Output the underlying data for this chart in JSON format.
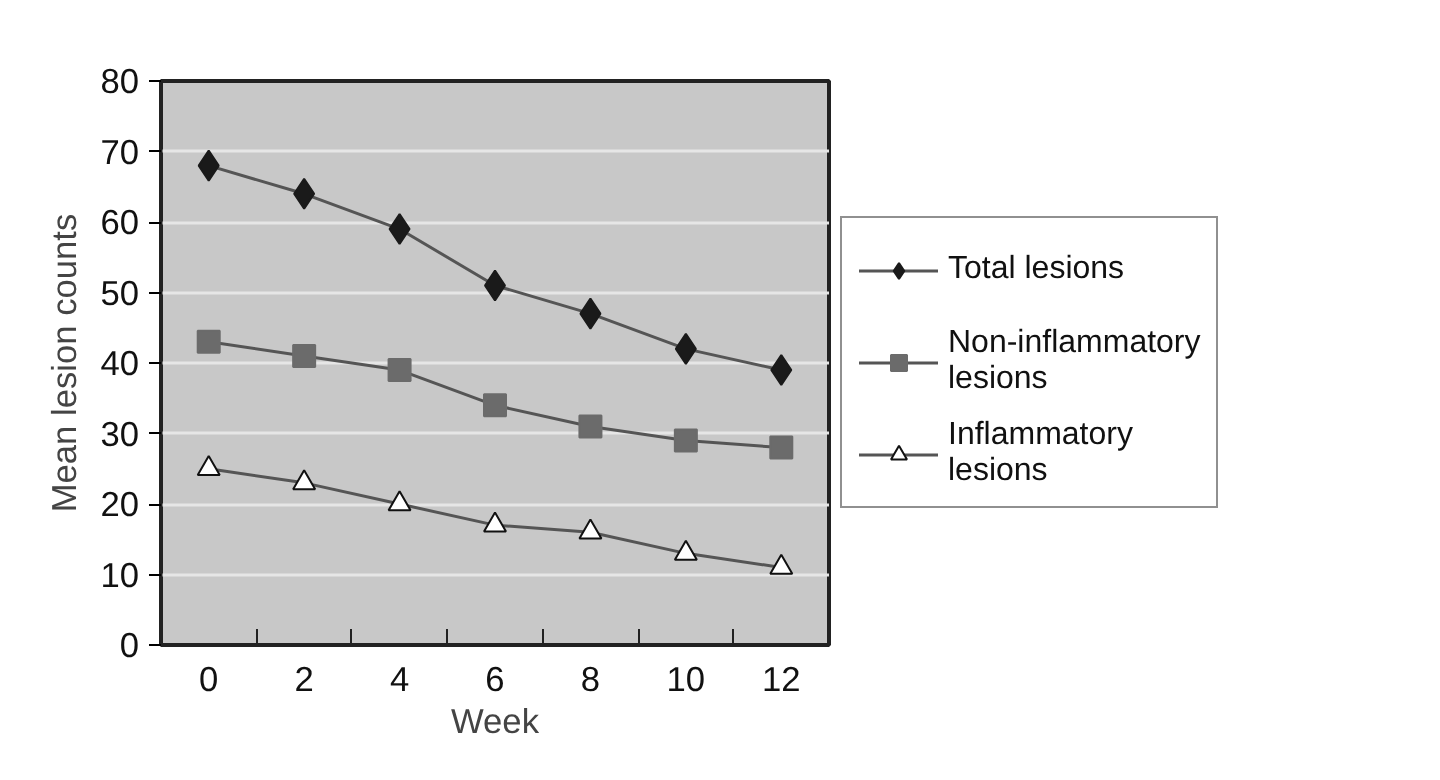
{
  "chart_data": {
    "type": "line",
    "xlabel": "Week",
    "ylabel": "Mean lesion counts",
    "categories": [
      "0",
      "2",
      "4",
      "6",
      "8",
      "10",
      "12"
    ],
    "ylim": [
      0,
      80
    ],
    "yticks": [
      0,
      10,
      20,
      30,
      40,
      50,
      60,
      70,
      80
    ],
    "grid": "y",
    "legend": "right",
    "series": [
      {
        "name": "Total lesions",
        "color": "#1a1a1a",
        "marker": "diamond",
        "values": [
          68,
          64,
          59,
          51,
          47,
          42,
          39
        ]
      },
      {
        "name": "Non-inflammatory lesions",
        "color": "#6b6b6b",
        "marker": "square",
        "values": [
          43,
          41,
          39,
          34,
          31,
          29,
          28
        ]
      },
      {
        "name": "Inflammatory lesions",
        "color": "#ffffff",
        "marker": "triangle",
        "values": [
          25,
          23,
          20,
          17,
          16,
          13,
          11
        ]
      }
    ]
  }
}
